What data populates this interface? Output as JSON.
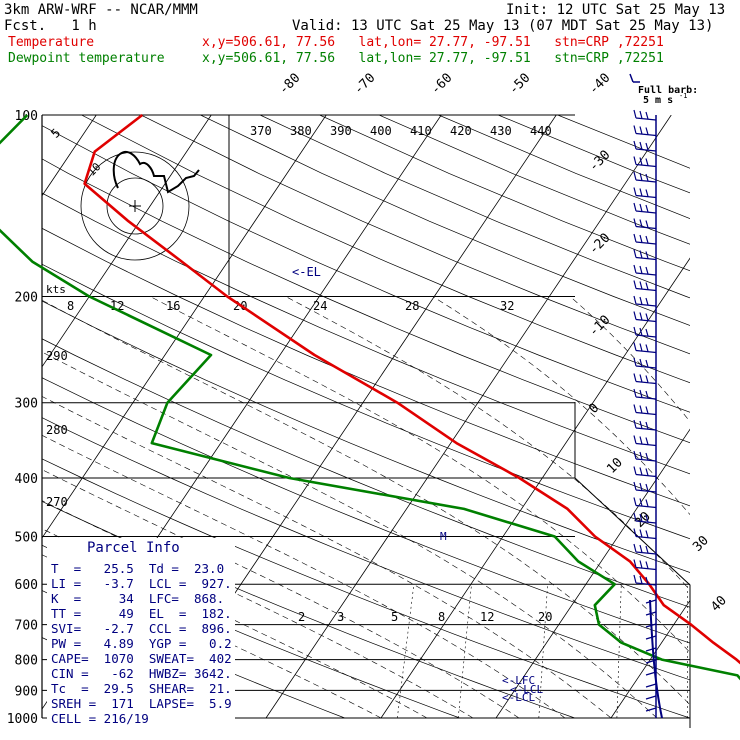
{
  "header": {
    "model": "3km ARW-WRF -- NCAR/MMM",
    "init": "Init: 12 UTC Sat 25 May 13",
    "fcst": "Fcst.   1 h",
    "valid": "Valid: 13 UTC Sat 25 May 13 (07 MDT Sat 25 May 13)",
    "temp_label": "Temperature",
    "dew_label": "Dewpoint temperature",
    "temp_loc": "x,y=506.61, 77.56   lat,lon= 27.77, -97.51   stn=CRP ,72251",
    "dew_loc": "x,y=506.61, 77.56   lat,lon= 27.77, -97.51   stn=CRP ,72251"
  },
  "colors": {
    "temperature": "#e00000",
    "dewpoint": "#008000",
    "wind": "#000080",
    "grid": "#000000"
  },
  "wind_legend": {
    "title": "Full barb:",
    "value": "5 m s",
    "sup": "-1"
  },
  "hodograph": {
    "units_label": "kts",
    "ring_labels": [
      "5",
      "10"
    ]
  },
  "parcel_info": {
    "title": "Parcel Info",
    "rows": [
      "T  =   25.5  Td =  23.0",
      "LI =   -3.7  LCL =  927.",
      "K  =     34  LFC=  868.",
      "TT =     49  EL  =  182.",
      "SVI=   -2.7  CCL =  896.",
      "PW =   4.89  YGP =   0.2",
      "CAPE=  1070  SWEAT=  402",
      "CIN =   -62  HWBZ= 3642.",
      "Tc  =  29.5  SHEAR=  21.",
      "SREH =  171  LAPSE=  5.9",
      "CELL = 216/19"
    ]
  },
  "annotations": {
    "el": "<-EL",
    "lfc": "<-LFC",
    "lcl": "<-LCL",
    "m": "M"
  },
  "chart_data": {
    "type": "line",
    "title": "",
    "xlabel": "",
    "ylabel": "",
    "pressure_ticks": [
      100,
      200,
      300,
      400,
      500,
      600,
      700,
      800,
      900,
      1000
    ],
    "temperature_isotherm_labels": [
      "-80",
      "-70",
      "-60",
      "-50",
      "-40",
      "-30",
      "-20",
      "-10",
      "0",
      "10",
      "20",
      "30",
      "40"
    ],
    "theta_labels": [
      "370",
      "380",
      "390",
      "400",
      "410",
      "420",
      "430",
      "440"
    ],
    "theta_side_labels": [
      "290",
      "280",
      "270"
    ],
    "mixing_ratio_labels_upper": [
      "8",
      "12",
      "16",
      "20",
      "24",
      "28",
      "32"
    ],
    "mixing_ratio_labels_lower": [
      "2",
      "3",
      "5",
      "8",
      "12",
      "20"
    ],
    "series": [
      {
        "name": "Temperature",
        "pressure": [
          1000,
          975,
          950,
          925,
          900,
          850,
          800,
          750,
          700,
          650,
          600,
          550,
          500,
          450,
          400,
          350,
          300,
          250,
          200,
          175,
          150,
          130,
          115,
          100
        ],
        "temperature_c": [
          25.5,
          25.0,
          24.0,
          23.0,
          22.0,
          20.0,
          17.5,
          14.5,
          11.5,
          8.0,
          5.5,
          2.5,
          -2.0,
          -6.0,
          -12.0,
          -19.5,
          -27.0,
          -37.0,
          -48.0,
          -54.0,
          -61.0,
          -67.0,
          -68.0,
          -66.0
        ]
      },
      {
        "name": "Dewpoint temperature",
        "pressure": [
          1000,
          975,
          950,
          925,
          900,
          850,
          800,
          750,
          700,
          650,
          600,
          550,
          500,
          450,
          400,
          350,
          300,
          250,
          200,
          175,
          150,
          130,
          115,
          100
        ],
        "dewpoint_c": [
          23.0,
          22.0,
          21.0,
          21.0,
          20.5,
          18.5,
          11.0,
          6.5,
          3.5,
          2.0,
          2.5,
          -2.0,
          -5.5,
          -15.0,
          -32.0,
          -46.0,
          -47.0,
          -46.0,
          -60.0,
          -67.0,
          -73.0,
          -76.0,
          -77.0,
          -76.0
        ]
      }
    ]
  }
}
